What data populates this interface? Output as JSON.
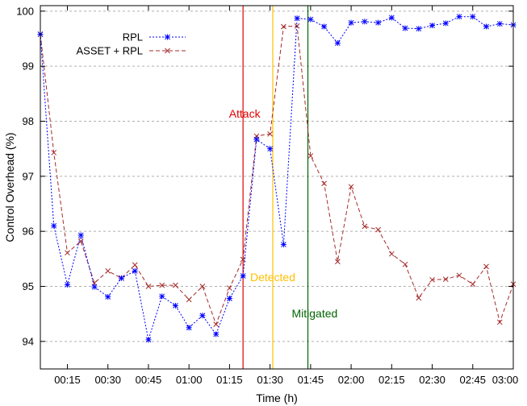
{
  "chart_data": {
    "type": "line",
    "title": "",
    "xlabel": "Time (h)",
    "ylabel": "Control Overhead (%)",
    "xlim": [
      5,
      180
    ],
    "ylim": [
      93.5,
      100.1
    ],
    "xticks": [
      {
        "value": 15,
        "label": "00:15"
      },
      {
        "value": 30,
        "label": "00:30"
      },
      {
        "value": 45,
        "label": "00:45"
      },
      {
        "value": 60,
        "label": "01:00"
      },
      {
        "value": 75,
        "label": "01:15"
      },
      {
        "value": 90,
        "label": "01:30"
      },
      {
        "value": 105,
        "label": "01:45"
      },
      {
        "value": 120,
        "label": "02:00"
      },
      {
        "value": 135,
        "label": "02:15"
      },
      {
        "value": 150,
        "label": "02:30"
      },
      {
        "value": 165,
        "label": "02:45"
      },
      {
        "value": 180,
        "label": "03:00"
      }
    ],
    "yticks": [
      {
        "value": 94,
        "label": "94"
      },
      {
        "value": 95,
        "label": "95"
      },
      {
        "value": 96,
        "label": "96"
      },
      {
        "value": 97,
        "label": "97"
      },
      {
        "value": 98,
        "label": "98"
      },
      {
        "value": 99,
        "label": "99"
      },
      {
        "value": 100,
        "label": "100"
      }
    ],
    "grid": "horizontal dashed",
    "legend_position": "top-left",
    "series": [
      {
        "name": "RPL",
        "color": "#0000ff",
        "marker": "asterisk",
        "x": [
          5,
          10,
          15,
          20,
          25,
          30,
          35,
          40,
          45,
          50,
          55,
          60,
          65,
          70,
          75,
          80,
          85,
          90,
          95,
          100,
          105,
          110,
          115,
          120,
          125,
          130,
          135,
          140,
          145,
          150,
          155,
          160,
          165,
          170,
          175,
          180
        ],
        "y": [
          99.58,
          96.1,
          95.03,
          95.93,
          94.99,
          94.81,
          95.15,
          95.28,
          94.03,
          94.82,
          94.65,
          94.25,
          94.47,
          94.13,
          94.78,
          95.19,
          97.67,
          97.5,
          95.76,
          99.87,
          99.85,
          99.72,
          99.42,
          99.79,
          99.81,
          99.79,
          99.88,
          99.69,
          99.68,
          99.74,
          99.78,
          99.9,
          99.9,
          99.72,
          99.77,
          99.75
        ]
      },
      {
        "name": "ASSET + RPL",
        "color": "#a52a2a",
        "marker": "cross",
        "x": [
          5,
          10,
          15,
          20,
          25,
          30,
          35,
          40,
          45,
          50,
          55,
          60,
          65,
          70,
          75,
          80,
          85,
          90,
          95,
          100,
          105,
          110,
          115,
          120,
          125,
          130,
          135,
          140,
          145,
          150,
          155,
          160,
          165,
          170,
          175,
          180
        ],
        "y": [
          99.58,
          97.43,
          95.61,
          95.82,
          95.06,
          95.28,
          95.15,
          95.39,
          95.0,
          95.02,
          95.02,
          94.76,
          95.0,
          94.31,
          94.97,
          95.49,
          97.73,
          97.77,
          99.72,
          99.73,
          97.37,
          96.87,
          95.45,
          96.81,
          96.09,
          96.03,
          95.59,
          95.4,
          94.79,
          95.12,
          95.13,
          95.2,
          95.04,
          95.36,
          94.35,
          95.04
        ]
      }
    ],
    "vlines": [
      {
        "x": 80,
        "label": "Attack",
        "color": "#e00000"
      },
      {
        "x": 91,
        "label": "Detected",
        "color": "#ffc000"
      },
      {
        "x": 104,
        "label": "Mitigated",
        "color": "#006400"
      }
    ]
  }
}
